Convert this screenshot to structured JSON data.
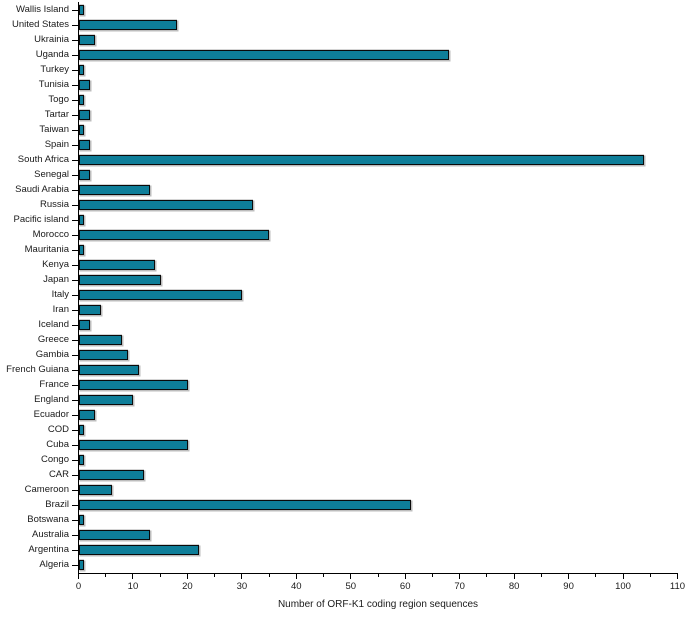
{
  "chart_data": {
    "type": "bar",
    "orientation": "horizontal",
    "title": "",
    "xlabel": "Number of ORF-K1 coding region sequences",
    "ylabel": "",
    "xlim": [
      0,
      110
    ],
    "x_major_ticks": [
      0,
      10,
      20,
      30,
      40,
      50,
      60,
      70,
      80,
      90,
      100,
      110
    ],
    "x_minor_tick_step": 5,
    "grid": false,
    "legend": "none",
    "bar_color": "#0e7e99",
    "bar_border_color": "#0a0a0a",
    "bar_shadow_color": "#bdbdbd",
    "axis_color": "#000000",
    "categories": [
      "Wallis Island",
      "United States",
      "Ukrainia",
      "Uganda",
      "Turkey",
      "Tunisia",
      "Togo",
      "Tartar",
      "Taiwan",
      "Spain",
      "South Africa",
      "Senegal",
      "Saudi Arabia",
      "Russia",
      "Pacific island",
      "Morocco",
      "Mauritania",
      "Kenya",
      "Japan",
      "Italy",
      "Iran",
      "Iceland",
      "Greece",
      "Gambia",
      "French Guiana",
      "France",
      "England",
      "Ecuador",
      "COD",
      "Cuba",
      "Congo",
      "CAR",
      "Cameroon",
      "Brazil",
      "Botswana",
      "Australia",
      "Argentina",
      "Algeria"
    ],
    "values": [
      1,
      18,
      3,
      68,
      1,
      2,
      1,
      2,
      1,
      2,
      104,
      2,
      13,
      32,
      1,
      35,
      1,
      14,
      15,
      30,
      4,
      2,
      8,
      9,
      11,
      20,
      10,
      3,
      1,
      20,
      1,
      12,
      6,
      61,
      1,
      13,
      22,
      1
    ]
  }
}
